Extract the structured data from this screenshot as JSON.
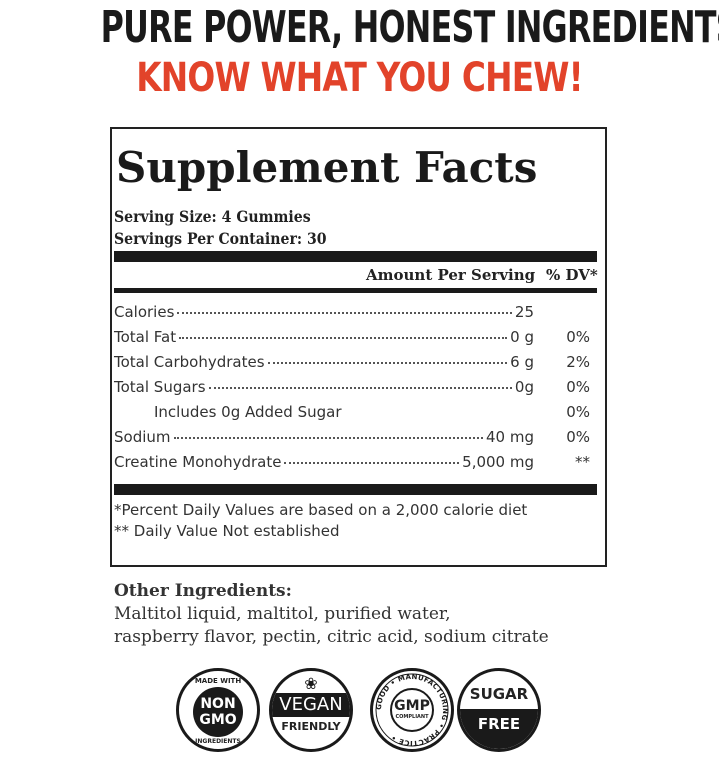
{
  "headline": {
    "line1": "PURE POWER, HONEST INGREDIENTS:",
    "line2": "KNOW WHAT YOU CHEW!"
  },
  "colors": {
    "headline_red": "#e2432a",
    "ink": "#1a1a1a"
  },
  "facts": {
    "title": "Supplement Facts",
    "serving_size": "Serving Size: 4 Gummies",
    "servings_per_container": "Servings Per Container: 30",
    "col_amount": "Amount Per Serving",
    "col_dv": "% DV*",
    "rows": [
      {
        "label": "Calories",
        "amount": "25",
        "dv": ""
      },
      {
        "label": "Total Fat",
        "amount": "0 g",
        "dv": "0%"
      },
      {
        "label": "Total Carbohydrates",
        "amount": "6 g",
        "dv": "2%"
      },
      {
        "label": "Total Sugars",
        "amount": "0g",
        "dv": "0%"
      },
      {
        "label": "Includes 0g Added Sugar",
        "amount": "",
        "dv": "0%"
      },
      {
        "label": "Sodium",
        "amount": "40 mg",
        "dv": "0%"
      },
      {
        "label": "Creatine Monohydrate",
        "amount": "5,000 mg",
        "dv": "**"
      }
    ],
    "footnote1": "*Percent Daily Values are based on a 2,000 calorie diet",
    "footnote2": "** Daily Value Not established"
  },
  "other_ingredients": {
    "title": "Other Ingredients:",
    "line1": "Maltitol liquid, maltitol, purified water,",
    "line2": "raspberry flavor, pectin, citric acid, sodium citrate"
  },
  "badges": [
    {
      "icon": "non-gmo-badge",
      "top": "MADE WITH",
      "main1": "NON",
      "main2": "GMO",
      "bottom": "INGREDIENTS"
    },
    {
      "icon": "vegan-badge",
      "main": "VEGAN",
      "sub": "FRIENDLY"
    },
    {
      "icon": "gmp-badge",
      "ring": "GOOD • MANUFACTURING • PRACTICE •",
      "main": "GMP",
      "sub": "COMPLIANT"
    },
    {
      "icon": "sugar-free-badge",
      "main1": "SUGAR",
      "main2": "FREE"
    }
  ]
}
